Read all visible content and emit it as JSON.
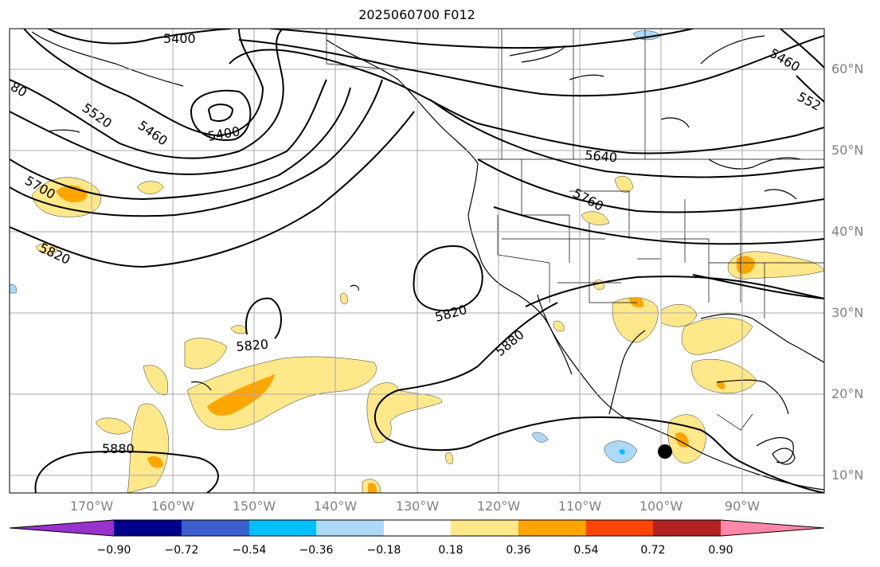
{
  "title": "2025060700 F012",
  "lat_labels": [
    "60°N",
    "50°N",
    "40°N",
    "30°N",
    "20°N",
    "10°N"
  ],
  "lon_labels": [
    "170°W",
    "160°W",
    "150°W",
    "140°W",
    "130°W",
    "120°W",
    "110°W",
    "100°W",
    "90°W"
  ],
  "contour_labels": [
    "5400",
    "5400",
    "5460",
    "5460",
    "5520",
    "552",
    "80",
    "5640",
    "5700",
    "5760",
    "5820",
    "5820",
    "5820",
    "5880",
    "5880"
  ],
  "colorbar": {
    "ticks": [
      "−0.90",
      "−0.72",
      "−0.54",
      "−0.36",
      "−0.18",
      "0.18",
      "0.36",
      "0.54",
      "0.72",
      "0.90"
    ],
    "colors": [
      "#9932cc",
      "#00008b",
      "#3a5fcd",
      "#00bfff",
      "#add8f6",
      "#ffffff",
      "#ffe88a",
      "#ffa500",
      "#ff4500",
      "#b22222",
      "#ff88aa"
    ]
  },
  "marker": {
    "symbol": "black-dot"
  }
}
